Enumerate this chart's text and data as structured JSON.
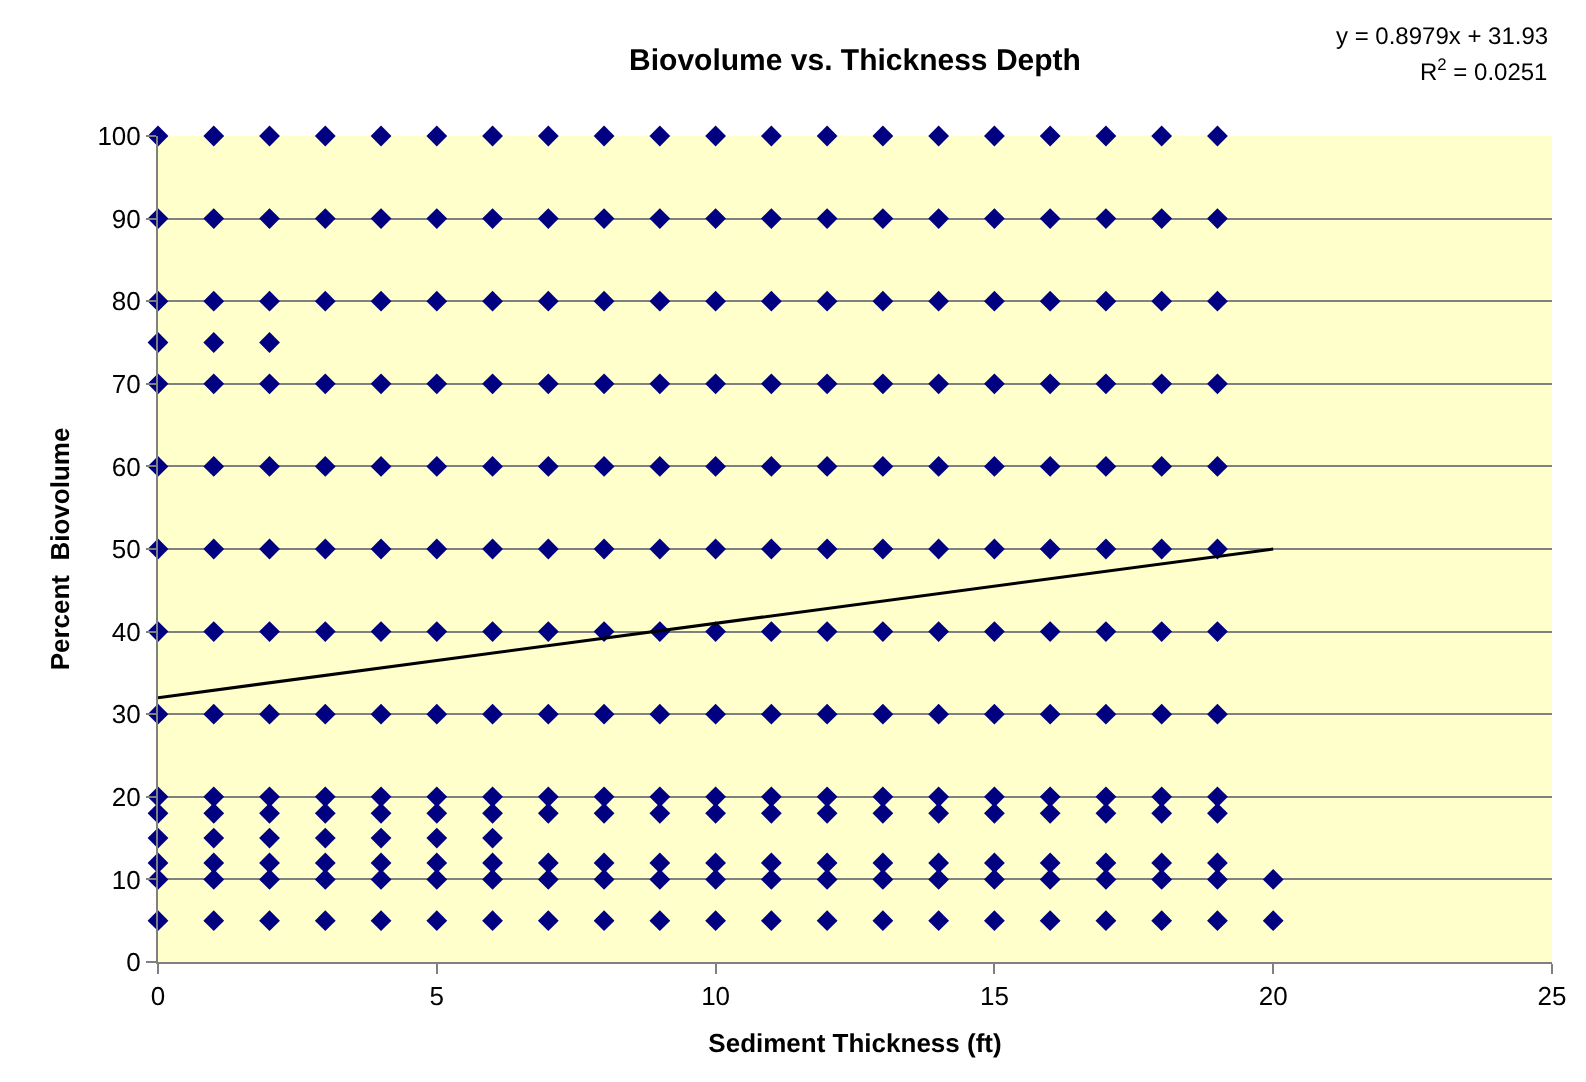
{
  "chart_data": {
    "type": "scatter",
    "title": "Biovolume vs. Thickness Depth",
    "xlabel": "Sediment Thickness (ft)",
    "ylabel": "Percent  Biovolume",
    "annotations": [
      "y = 0.8979x + 31.93",
      "R$^{2}$ = 0.0251"
    ],
    "series": [
      {
        "color": "#000080",
        "marker": "diamond",
        "x": [
          0,
          1,
          2,
          3,
          4,
          5,
          6,
          7,
          8,
          9,
          10,
          11,
          12,
          13,
          14,
          15,
          16,
          17,
          18,
          19,
          0,
          1,
          2,
          3,
          4,
          5,
          6,
          7,
          8,
          9,
          10,
          11,
          12,
          13,
          14,
          15,
          16,
          17,
          18,
          19,
          0,
          1,
          2,
          3,
          4,
          5,
          6,
          7,
          8,
          9,
          10,
          11,
          12,
          13,
          14,
          15,
          16,
          17,
          18,
          19,
          0,
          1,
          2,
          0,
          1,
          2,
          3,
          4,
          5,
          6,
          7,
          8,
          9,
          10,
          11,
          12,
          13,
          14,
          15,
          16,
          17,
          18,
          19,
          0,
          1,
          2,
          3,
          4,
          5,
          6,
          7,
          8,
          9,
          10,
          11,
          12,
          13,
          14,
          15,
          16,
          17,
          18,
          19,
          0,
          1,
          2,
          3,
          4,
          5,
          6,
          7,
          8,
          9,
          10,
          11,
          12,
          13,
          14,
          15,
          16,
          17,
          18,
          19,
          0,
          1,
          2,
          3,
          4,
          5,
          6,
          7,
          8,
          9,
          10,
          11,
          12,
          13,
          14,
          15,
          16,
          17,
          18,
          19,
          0,
          1,
          2,
          3,
          4,
          5,
          6,
          7,
          8,
          9,
          10,
          11,
          12,
          13,
          14,
          15,
          16,
          17,
          18,
          19,
          0,
          1,
          2,
          3,
          4,
          5,
          6,
          7,
          8,
          9,
          10,
          11,
          12,
          13,
          14,
          15,
          16,
          17,
          18,
          19,
          0,
          1,
          2,
          3,
          4,
          5,
          6,
          7,
          8,
          9,
          10,
          11,
          12,
          13,
          14,
          15,
          16,
          17,
          18,
          19,
          0,
          1,
          2,
          3,
          4,
          5,
          6,
          0,
          1,
          2,
          3,
          4,
          5,
          6,
          7,
          8,
          9,
          10,
          11,
          12,
          13,
          14,
          15,
          16,
          17,
          18,
          19,
          0,
          1,
          2,
          3,
          4,
          5,
          6,
          7,
          8,
          9,
          10,
          11,
          12,
          13,
          14,
          15,
          16,
          17,
          18,
          19,
          20,
          0,
          1,
          2,
          3,
          4,
          5,
          6,
          7,
          8,
          9,
          10,
          11,
          12,
          13,
          14,
          15,
          16,
          17,
          18,
          19,
          20
        ],
        "values": [
          100,
          100,
          100,
          100,
          100,
          100,
          100,
          100,
          100,
          100,
          100,
          100,
          100,
          100,
          100,
          100,
          100,
          100,
          100,
          100,
          90,
          90,
          90,
          90,
          90,
          90,
          90,
          90,
          90,
          90,
          90,
          90,
          90,
          90,
          90,
          90,
          90,
          90,
          90,
          90,
          80,
          80,
          80,
          80,
          80,
          80,
          80,
          80,
          80,
          80,
          80,
          80,
          80,
          80,
          80,
          80,
          80,
          80,
          80,
          80,
          75,
          75,
          75,
          70,
          70,
          70,
          70,
          70,
          70,
          70,
          70,
          70,
          70,
          70,
          70,
          70,
          70,
          70,
          70,
          70,
          70,
          70,
          70,
          60,
          60,
          60,
          60,
          60,
          60,
          60,
          60,
          60,
          60,
          60,
          60,
          60,
          60,
          60,
          60,
          60,
          60,
          60,
          60,
          50,
          50,
          50,
          50,
          50,
          50,
          50,
          50,
          50,
          50,
          50,
          50,
          50,
          50,
          50,
          50,
          50,
          50,
          50,
          50,
          40,
          40,
          40,
          40,
          40,
          40,
          40,
          40,
          40,
          40,
          40,
          40,
          40,
          40,
          40,
          40,
          40,
          40,
          40,
          40,
          30,
          30,
          30,
          30,
          30,
          30,
          30,
          30,
          30,
          30,
          30,
          30,
          30,
          30,
          30,
          30,
          30,
          30,
          30,
          30,
          20,
          20,
          20,
          20,
          20,
          20,
          20,
          20,
          20,
          20,
          20,
          20,
          20,
          20,
          20,
          20,
          20,
          20,
          20,
          20,
          18,
          18,
          18,
          18,
          18,
          18,
          18,
          18,
          18,
          18,
          18,
          18,
          18,
          18,
          18,
          18,
          18,
          18,
          18,
          18,
          15,
          15,
          15,
          15,
          15,
          15,
          15,
          12,
          12,
          12,
          12,
          12,
          12,
          12,
          12,
          12,
          12,
          12,
          12,
          12,
          12,
          12,
          12,
          12,
          12,
          12,
          12,
          10,
          10,
          10,
          10,
          10,
          10,
          10,
          10,
          10,
          10,
          10,
          10,
          10,
          10,
          10,
          10,
          10,
          10,
          10,
          10,
          10,
          5,
          5,
          5,
          5,
          5,
          5,
          5,
          5,
          5,
          5,
          5,
          5,
          5,
          5,
          5,
          5,
          5,
          5,
          5,
          5,
          5
        ]
      },
      {
        "type": "line",
        "color": "#000000",
        "marker": "none",
        "line_style": "solid",
        "x": [
          0,
          20
        ],
        "values": [
          32,
          50
        ]
      }
    ],
    "xlim": [
      0,
      25
    ],
    "xticks": [
      0,
      5,
      10,
      15,
      20,
      25
    ],
    "ylim": [
      0,
      100
    ],
    "yticks": [
      0,
      10,
      20,
      30,
      40,
      50,
      60,
      70,
      80,
      90,
      100
    ],
    "grid": "y"
  }
}
